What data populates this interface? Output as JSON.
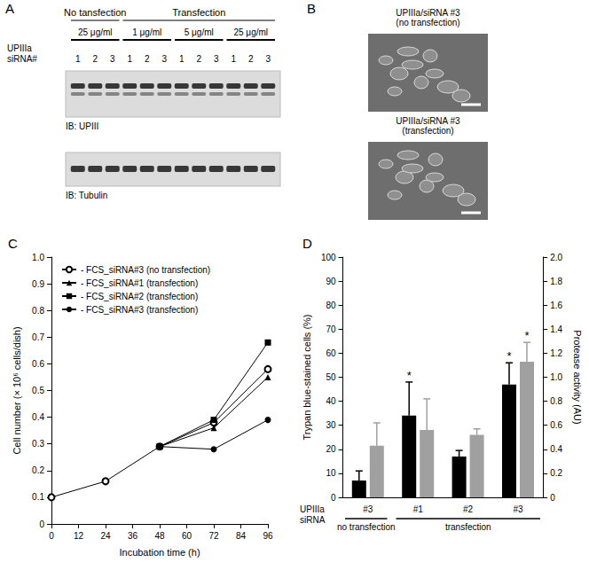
{
  "figure": {
    "A": {
      "label": "A",
      "header_groups": [
        {
          "text": "No tansfection",
          "lanes": 3
        },
        {
          "text": "Transfection",
          "lanes": 9
        }
      ],
      "row_label_lines": [
        "UPIIIa",
        "siRNA#"
      ],
      "concentrations": [
        {
          "text": "25 μg/ml",
          "lanes": 3
        },
        {
          "text": "1 μg/ml",
          "lanes": 3
        },
        {
          "text": "5 μg/ml",
          "lanes": 3
        },
        {
          "text": "25 μg/ml",
          "lanes": 3
        }
      ],
      "lanes": [
        1,
        2,
        3,
        1,
        2,
        3,
        1,
        2,
        3,
        1,
        2,
        3
      ],
      "blots": [
        {
          "label": "IB: UPIII"
        },
        {
          "label": "IB: Tubulin"
        }
      ]
    },
    "B": {
      "label": "B",
      "images": [
        {
          "caption_lines": [
            "UPIIIa/siRNA #3",
            "(no transfection)"
          ]
        },
        {
          "caption_lines": [
            "UPIIIa/siRNA #3",
            "(transfection)"
          ]
        }
      ]
    }
  },
  "chart_data": [
    {
      "panel": "C",
      "type": "line",
      "x_label": "Incubation time (h)",
      "y_label": "Cell number (× 10⁶ cells/dish)",
      "xlim": [
        0,
        96
      ],
      "xticks": [
        0,
        12,
        24,
        36,
        48,
        60,
        72,
        84,
        96
      ],
      "ylim": [
        0,
        1
      ],
      "yticks": [
        0,
        0.1,
        0.2,
        0.3,
        0.4,
        0.5,
        0.6,
        0.7,
        0.8,
        0.9,
        {
          "value": 1,
          "label": "1.0"
        }
      ],
      "grid": false,
      "legend": "upper left",
      "series": [
        {
          "name": "- FCS_siRNA#3 (no transfection)",
          "color": "#000000",
          "marker": "circle-open",
          "x": [
            0,
            24,
            48,
            72,
            96
          ],
          "values": [
            0.1,
            0.16,
            0.29,
            0.38,
            0.58
          ]
        },
        {
          "name": "- FCS_siRNA#1 (transfection)",
          "color": "#000000",
          "marker": "triangle",
          "x": [
            48,
            72,
            96
          ],
          "values": [
            0.29,
            0.36,
            0.55
          ]
        },
        {
          "name": "- FCS_siRNA#2 (transfection)",
          "color": "#000000",
          "marker": "square",
          "x": [
            48,
            72,
            96
          ],
          "values": [
            0.29,
            0.39,
            0.68
          ]
        },
        {
          "name": "- FCS_siRNA#3 (transfection)",
          "color": "#000000",
          "marker": "circle",
          "x": [
            48,
            72,
            96
          ],
          "values": [
            0.29,
            0.28,
            0.39
          ]
        }
      ]
    },
    {
      "panel": "D",
      "type": "bar",
      "categories": [
        "#3",
        "#1",
        "#2",
        "#3"
      ],
      "x_label_lines": [
        "UPIIIa",
        "siRNA"
      ],
      "groups": [
        {
          "label": "no transfection",
          "categories": 1
        },
        {
          "label": "transfection",
          "categories": 3
        }
      ],
      "y_label": "Trypan blue-stained cells (%)",
      "y2_label": "Protease activity (AU)",
      "ylim": [
        0,
        100
      ],
      "yticks": [
        0,
        10,
        20,
        30,
        40,
        50,
        60,
        70,
        80,
        90,
        100
      ],
      "y2lim": [
        0,
        2
      ],
      "y2ticks": [
        0,
        0.2,
        0.4,
        0.6,
        0.8,
        {
          "value": 1,
          "label": "1.0"
        },
        1.2,
        1.4,
        1.6,
        1.8,
        {
          "value": 2,
          "label": "2.0"
        }
      ],
      "grid": false,
      "series": [
        {
          "color": "#000000",
          "values": [
            7,
            34,
            17,
            47
          ],
          "errors": [
            4,
            14,
            2.5,
            9
          ],
          "significance": [
            null,
            "*",
            null,
            "*"
          ]
        },
        {
          "color": "#a0a0a0",
          "axis": "y2",
          "values": [
            0.43,
            0.56,
            0.52,
            1.13
          ],
          "errors": [
            0.19,
            0.26,
            0.05,
            0.16
          ],
          "significance": [
            null,
            null,
            null,
            "*"
          ]
        }
      ]
    }
  ]
}
